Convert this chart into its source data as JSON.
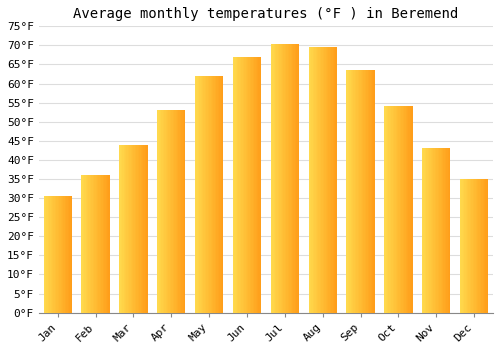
{
  "title": "Average monthly temperatures (°F ) in Beremend",
  "months": [
    "Jan",
    "Feb",
    "Mar",
    "Apr",
    "May",
    "Jun",
    "Jul",
    "Aug",
    "Sep",
    "Oct",
    "Nov",
    "Dec"
  ],
  "values": [
    30.5,
    36.0,
    44.0,
    53.0,
    62.0,
    67.0,
    70.3,
    69.5,
    63.5,
    54.0,
    43.0,
    35.0
  ],
  "bar_color_left": "#FFCC44",
  "bar_color_right": "#FFA500",
  "bar_color_mid": "#FFB830",
  "ylim": [
    0,
    75
  ],
  "ytick_step": 5,
  "background_color": "#ffffff",
  "grid_color": "#dddddd",
  "title_fontsize": 10,
  "tick_fontsize": 8,
  "bar_width": 0.75
}
